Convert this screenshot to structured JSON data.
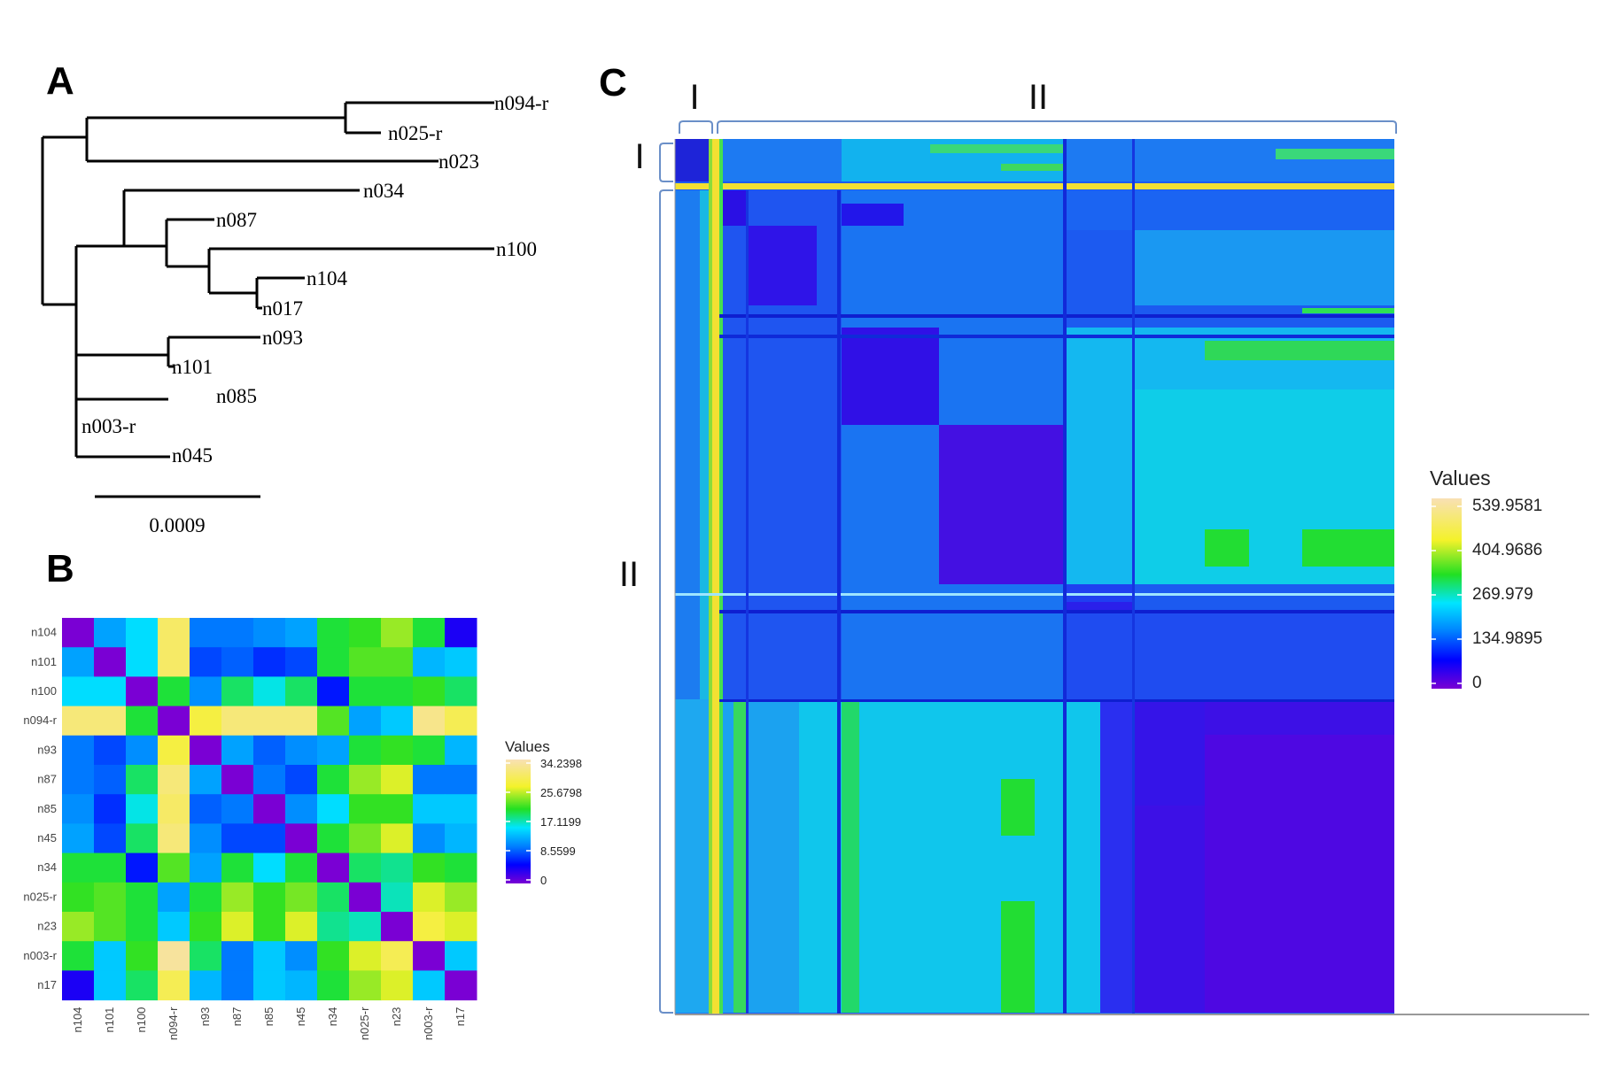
{
  "panel_labels": [
    "A",
    "B",
    "C"
  ],
  "chart_data": [
    {
      "type": "tree",
      "panel": "A",
      "title": "",
      "tips": [
        "n094-r",
        "n025-r",
        "n023",
        "n034",
        "n087",
        "n100",
        "n104",
        "n017",
        "n093",
        "n101",
        "n085",
        "n003-r",
        "n045"
      ],
      "scale_bar": {
        "label": "0.0009",
        "value": 0.0009
      }
    },
    {
      "type": "heatmap",
      "panel": "B",
      "title": "",
      "x_labels": [
        "n104",
        "n101",
        "n100",
        "n094-r",
        "n93",
        "n87",
        "n85",
        "n45",
        "n34",
        "n025-r",
        "n23",
        "n003-r",
        "n17"
      ],
      "y_labels": [
        "n104",
        "n101",
        "n100",
        "n094-r",
        "n93",
        "n87",
        "n85",
        "n45",
        "n34",
        "n025-r",
        "n23",
        "n003-r",
        "n17"
      ],
      "values": [
        [
          0,
          12,
          15,
          30,
          10,
          10,
          11,
          12,
          20,
          21,
          24,
          20,
          4
        ],
        [
          12,
          0,
          15,
          30,
          8,
          9,
          7,
          8,
          20,
          22,
          22,
          13,
          14
        ],
        [
          15,
          15,
          0,
          20,
          11,
          19,
          16,
          19,
          6,
          20,
          20,
          21,
          19
        ],
        [
          31,
          31,
          20,
          0,
          28,
          31,
          31,
          31,
          22,
          12,
          14,
          32,
          29
        ],
        [
          10,
          8,
          11,
          28,
          0,
          12,
          9,
          11,
          12,
          20,
          21,
          20,
          13
        ],
        [
          10,
          9,
          19,
          31,
          12,
          0,
          10,
          8,
          20,
          24,
          26,
          10,
          10
        ],
        [
          11,
          7,
          16,
          30,
          9,
          10,
          0,
          11,
          15,
          21,
          21,
          14,
          14
        ],
        [
          12,
          8,
          19,
          31,
          11,
          8,
          8,
          0,
          20,
          23,
          26,
          11,
          13
        ],
        [
          20,
          20,
          6,
          22,
          12,
          20,
          15,
          20,
          0,
          19,
          18,
          21,
          20
        ],
        [
          21,
          22,
          20,
          12,
          20,
          24,
          21,
          23,
          19,
          0,
          17,
          26,
          24
        ],
        [
          24,
          22,
          20,
          14,
          21,
          26,
          21,
          26,
          18,
          17,
          0,
          28,
          26
        ],
        [
          20,
          14,
          21,
          33,
          19,
          10,
          14,
          11,
          21,
          26,
          29,
          0,
          14
        ],
        [
          4,
          14,
          19,
          29,
          13,
          10,
          14,
          13,
          20,
          24,
          26,
          14,
          0
        ]
      ],
      "legend": {
        "title": "Values",
        "ticks": [
          "34.2398",
          "25.6798",
          "17.1199",
          "8.5599",
          "0"
        ],
        "min": 0,
        "max": 34.2398
      }
    },
    {
      "type": "heatmap",
      "panel": "C",
      "title": "",
      "row_clusters": [
        "I",
        "II"
      ],
      "col_clusters": [
        "I",
        "II"
      ],
      "legend": {
        "title": "Values",
        "ticks": [
          "539.9581",
          "404.9686",
          "269.979",
          "134.9895",
          "0"
        ],
        "min": 0,
        "max": 539.9581
      }
    }
  ],
  "colors": {
    "branch": "#000000",
    "bracket": "#6a8fc8",
    "background": "#ffffff"
  }
}
